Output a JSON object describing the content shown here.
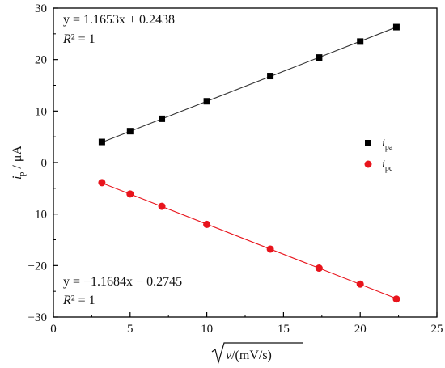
{
  "chart_data": {
    "type": "scatter",
    "xlim": [
      0,
      25
    ],
    "ylim": [
      -30,
      30
    ],
    "x_ticks": [
      0,
      5,
      10,
      15,
      20,
      25
    ],
    "y_ticks": [
      -30,
      -20,
      -10,
      0,
      10,
      20,
      30
    ],
    "xlabel": "√ν/(mV/s)",
    "ylabel": "ip / μA",
    "grid": false,
    "legend_position": "right, middle",
    "series": [
      {
        "name": "ipa",
        "marker": "square",
        "color": "#000000",
        "x": [
          3.16,
          5.0,
          7.07,
          10.0,
          14.14,
          17.32,
          20.0,
          22.36
        ],
        "y": [
          4.0,
          6.1,
          8.5,
          11.9,
          16.8,
          20.4,
          23.5,
          26.3
        ],
        "fit": {
          "slope": 1.1653,
          "intercept": 0.2438,
          "line_color": "#333333"
        }
      },
      {
        "name": "ipc",
        "marker": "circle",
        "color": "#e8141c",
        "x": [
          3.16,
          5.0,
          7.07,
          10.0,
          14.14,
          17.32,
          20.0,
          22.36
        ],
        "y": [
          -3.9,
          -6.1,
          -8.5,
          -12.0,
          -16.8,
          -20.5,
          -23.6,
          -26.5
        ],
        "fit": {
          "slope": -1.1684,
          "intercept": -0.2745,
          "line_color": "#e8141c"
        }
      }
    ],
    "annotations": [
      {
        "equation": "y = 1.1653x + 0.2438",
        "r2_label": "R",
        "r2_value": "² = 1"
      },
      {
        "equation": "y = −1.1684x − 0.2745",
        "r2_label": "R",
        "r2_value": "² = 1"
      }
    ],
    "legend": [
      {
        "main": "i",
        "sub": "pa"
      },
      {
        "main": "i",
        "sub": "pc"
      }
    ],
    "axis_labels": {
      "x_main": "ν",
      "x_unit": "/(mV/s)",
      "y_main": "i",
      "y_sub": "p",
      "y_unit": " / μA"
    }
  }
}
